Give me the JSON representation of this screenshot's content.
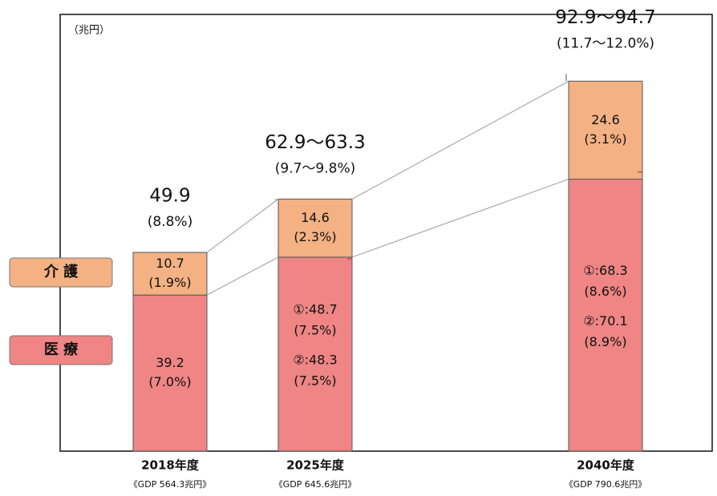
{
  "chart_data": {
    "type": "stacked-bar",
    "unit_label": "（兆円）",
    "categories": [
      "2018年度",
      "2025年度",
      "2040年度"
    ],
    "gdp_labels": [
      "《GDP 564.3兆円》",
      "《GDP 645.6兆円》",
      "《GDP 790.6兆円》"
    ],
    "totals_low": [
      49.9,
      62.9,
      92.9
    ],
    "totals_high": [
      49.9,
      63.3,
      94.7
    ],
    "total_labels": [
      "49.9",
      "62.9～63.3",
      "92.9～94.7"
    ],
    "total_share_labels": [
      "(8.8%)",
      "(9.7～9.8%)",
      "(11.7～12.0%)"
    ],
    "series": [
      {
        "name": "医 療",
        "color": "#ef8585",
        "values": [
          39.2,
          48.7,
          68.3
        ],
        "value_labels": [
          "39.2",
          "①:48.7",
          "①:68.3"
        ],
        "share_labels": [
          "(7.0%)",
          "(7.5%)",
          "(8.6%)"
        ],
        "scenario_2_values": [
          null,
          48.3,
          70.1
        ],
        "scenario_2_labels": [
          null,
          "②:48.3",
          "②:70.1"
        ],
        "scenario_2_share_labels": [
          null,
          "(7.5%)",
          "(8.9%)"
        ]
      },
      {
        "name": "介 護",
        "color": "#f4b183",
        "values": [
          10.7,
          14.6,
          24.6
        ],
        "value_labels": [
          "10.7",
          "14.6",
          "24.6"
        ],
        "share_labels": [
          "(1.9%)",
          "(2.3%)",
          "(3.1%)"
        ]
      }
    ]
  }
}
